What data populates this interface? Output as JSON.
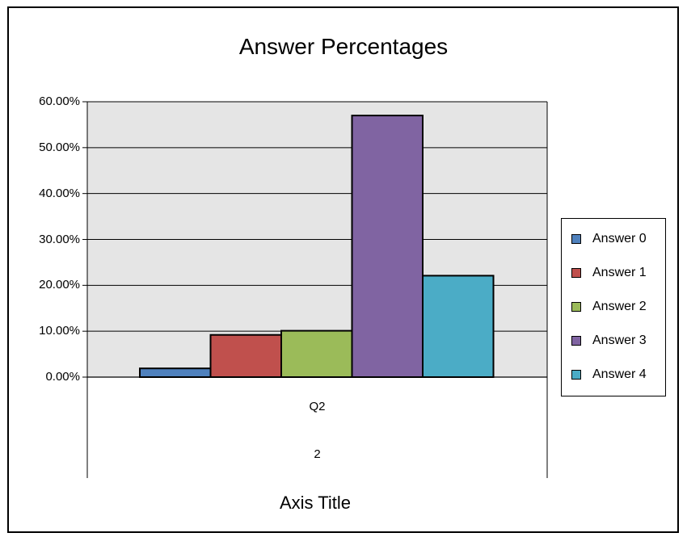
{
  "chart_data": {
    "type": "bar",
    "title": "Answer Percentages",
    "xlabel": "Axis Title",
    "ylabel": "",
    "categories": [
      "Q2"
    ],
    "category_sublabels": [
      "2"
    ],
    "ylim": [
      0,
      60
    ],
    "yticks": [
      "0.00%",
      "10.00%",
      "20.00%",
      "30.00%",
      "40.00%",
      "50.00%",
      "60.00%"
    ],
    "grid": true,
    "legend_position": "right",
    "series": [
      {
        "name": "Answer 0",
        "values": [
          1.9
        ],
        "color": "#4F81BD"
      },
      {
        "name": "Answer 1",
        "values": [
          9.2
        ],
        "color": "#C0504D"
      },
      {
        "name": "Answer 2",
        "values": [
          10.1
        ],
        "color": "#9BBB59"
      },
      {
        "name": "Answer 3",
        "values": [
          57.0
        ],
        "color": "#8064A2"
      },
      {
        "name": "Answer 4",
        "values": [
          22.1
        ],
        "color": "#4BACC6"
      }
    ]
  }
}
